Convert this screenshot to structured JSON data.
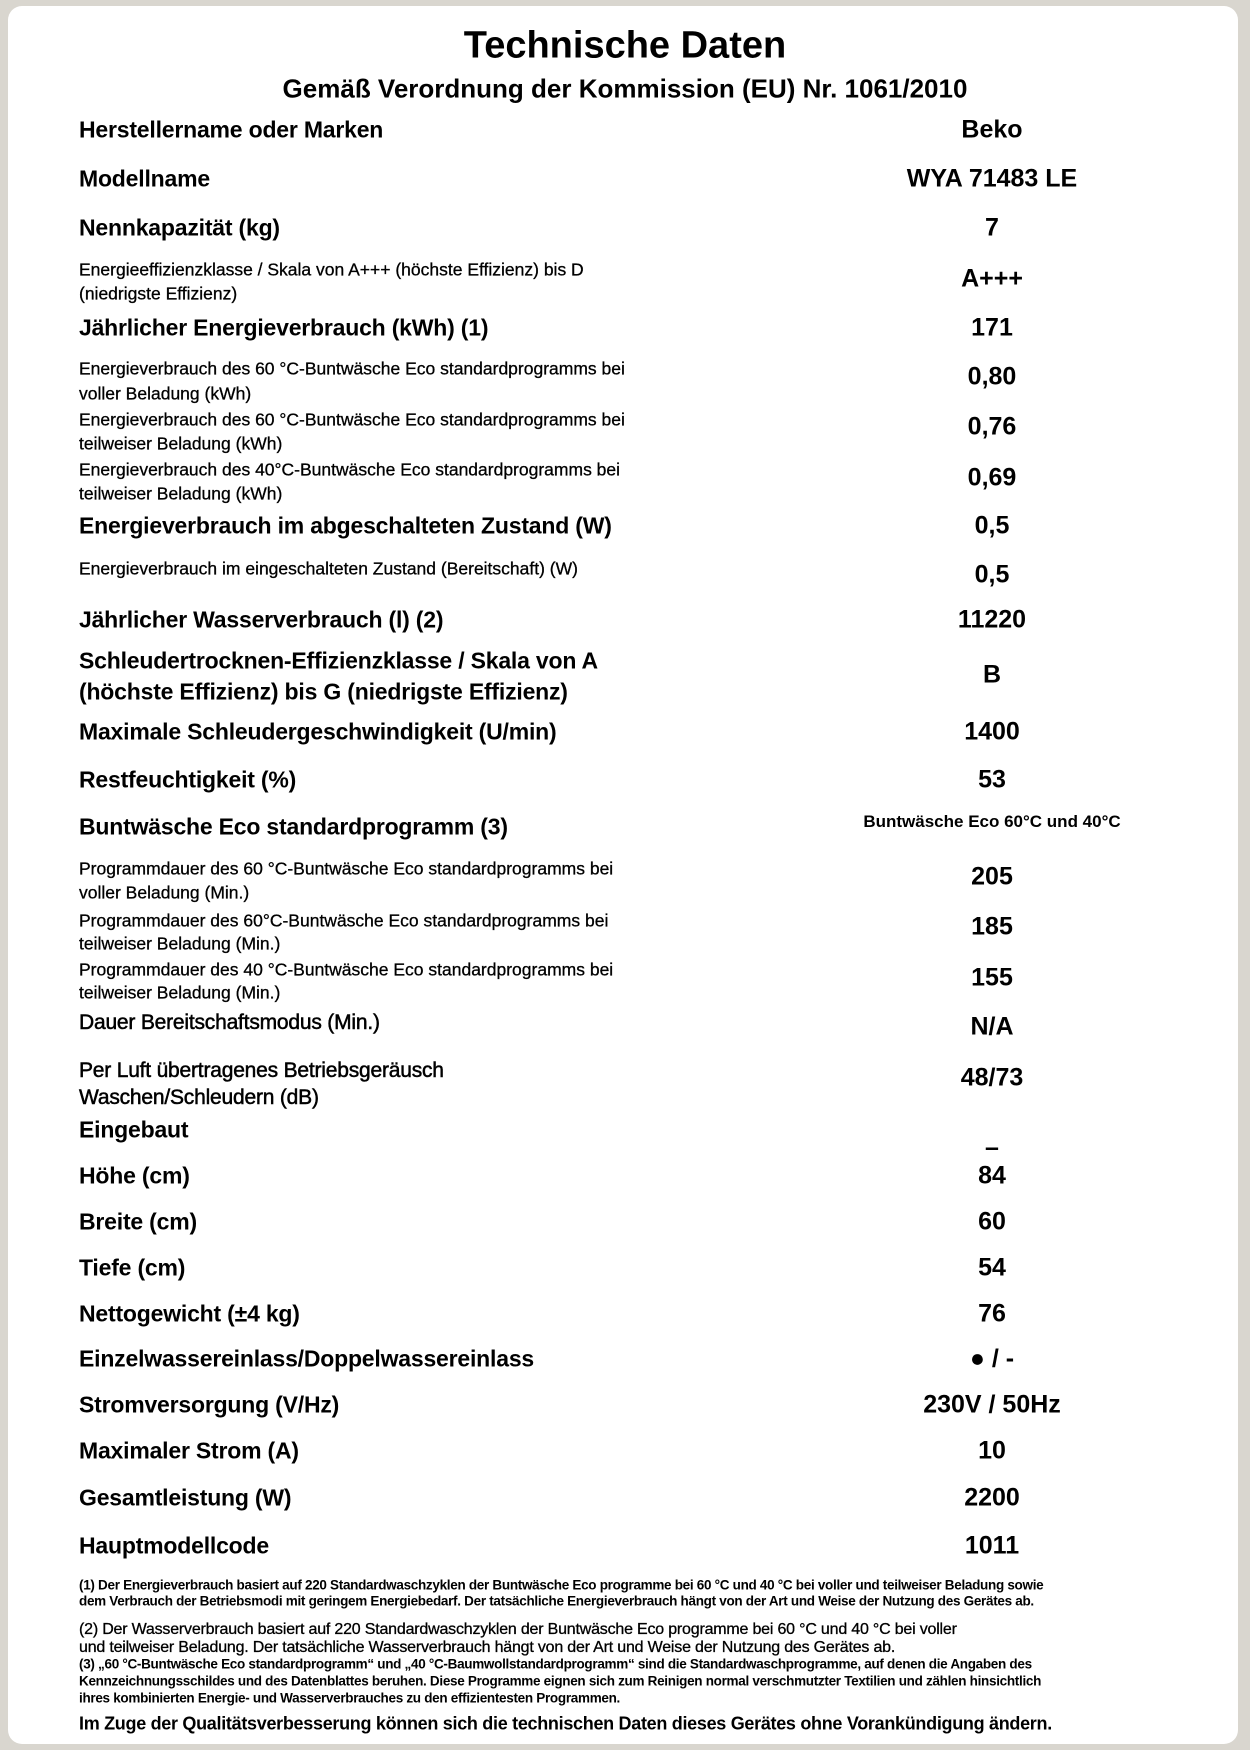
{
  "title": "Technische Daten",
  "subtitle": "Gemäß Verordnung der Kommission (EU) Nr. 1061/2010",
  "rows": [
    {
      "label": [
        "Herstellername oder Marken"
      ],
      "value": "Beko"
    },
    {
      "label": [
        "Modellname"
      ],
      "value": "WYA 71483 LE"
    },
    {
      "label": [
        "Nennkapazität (kg)"
      ],
      "value": "7"
    },
    {
      "label": [
        "Energieeffizienzklasse / Skala von A+++ (höchste Effizienz) bis D",
        "(niedrigste Effizienz)"
      ],
      "value": "A+++"
    },
    {
      "label": [
        "Jährlicher Energieverbrauch (kWh) (1)"
      ],
      "value": "171"
    },
    {
      "label": [
        "Energieverbrauch des 60 °C-Buntwäsche Eco standardprogramms bei",
        "voller Beladung (kWh)"
      ],
      "value": "0,80"
    },
    {
      "label": [
        "Energieverbrauch des 60 °C-Buntwäsche Eco standardprogramms bei",
        "teilweiser Beladung (kWh)"
      ],
      "value": "0,76"
    },
    {
      "label": [
        "Energieverbrauch des 40°C-Buntwäsche Eco standardprogramms bei",
        "teilweiser Beladung (kWh)"
      ],
      "value": "0,69"
    },
    {
      "label": [
        "Energieverbrauch im abgeschalteten Zustand (W)"
      ],
      "value": "0,5"
    },
    {
      "label": [
        "Energieverbrauch im eingeschalteten Zustand (Bereitschaft) (W)"
      ],
      "value": "0,5"
    },
    {
      "label": [
        "Jährlicher Wasserverbrauch (l) (2)"
      ],
      "value": "11220"
    },
    {
      "label": [
        "Schleudertrocknen-Effizienzklasse / Skala von A",
        "(höchste Effizienz) bis G (niedrigste Effizienz)"
      ],
      "value": "B"
    },
    {
      "label": [
        "Maximale Schleudergeschwindigkeit (U/min)"
      ],
      "value": "1400"
    },
    {
      "label": [
        "Restfeuchtigkeit (%)"
      ],
      "value": "53"
    },
    {
      "label": [
        "Buntwäsche Eco standardprogramm (3)"
      ],
      "value": "Buntwäsche Eco 60°C und 40°C"
    },
    {
      "label": [
        "Programmdauer des 60 °C-Buntwäsche Eco standardprogramms bei",
        "voller Beladung (Min.)"
      ],
      "value": "205"
    },
    {
      "label": [
        "Programmdauer des 60°C-Buntwäsche Eco standardprogramms bei",
        "teilweiser Beladung (Min.)"
      ],
      "value": "185"
    },
    {
      "label": [
        "Programmdauer des 40 °C-Buntwäsche Eco standardprogramms bei",
        "teilweiser Beladung (Min.)"
      ],
      "value": "155"
    },
    {
      "label": [
        "Dauer Bereitschaftsmodus (Min.)"
      ],
      "value": "N/A"
    },
    {
      "label": [
        "Per Luft übertragenes Betriebsgeräusch",
        "Waschen/Schleudern (dB)"
      ],
      "value": "48/73"
    },
    {
      "label": [
        "Eingebaut"
      ],
      "value": "–"
    },
    {
      "label": [
        "Höhe (cm)"
      ],
      "value": "84"
    },
    {
      "label": [
        "Breite (cm)"
      ],
      "value": "60"
    },
    {
      "label": [
        "Tiefe (cm)"
      ],
      "value": "54"
    },
    {
      "label": [
        "Nettogewicht (±4 kg)"
      ],
      "value": "76"
    },
    {
      "label": [
        "Einzelwassereinlass/Doppelwassereinlass"
      ],
      "value": "● / -"
    },
    {
      "label": [
        "Stromversorgung (V/Hz)"
      ],
      "value": "230V / 50Hz"
    },
    {
      "label": [
        "Maximaler Strom (A)"
      ],
      "value": "10"
    },
    {
      "label": [
        "Gesamtleistung (W)"
      ],
      "value": "2200"
    },
    {
      "label": [
        "Hauptmodellcode"
      ],
      "value": "1011"
    }
  ],
  "footnotes": {
    "f1": [
      "(1) Der Energieverbrauch basiert auf 220 Standardwaschzyklen der Buntwäsche Eco programme bei 60 °C und 40 °C bei voller und teilweiser Beladung sowie",
      "dem Verbrauch der Betriebsmodi mit geringem Energiebedarf. Der tatsächliche Energieverbrauch hängt von der Art und Weise der Nutzung des Gerätes ab."
    ],
    "f2": [
      "(2) Der Wasserverbrauch basiert auf 220 Standardwaschzyklen der Buntwäsche Eco programme bei 60 °C und 40 °C bei voller",
      "und teilweiser Beladung. Der tatsächliche Wasserverbrauch hängt von der Art und Weise der Nutzung des Gerätes ab."
    ],
    "f3": [
      "(3) „60 °C-Buntwäsche Eco standardprogramm“ und „40 °C-Baumwollstandardprogramm“ sind die Standardwaschprogramme, auf denen die Angaben des",
      "Kennzeichnungsschildes und des Datenblattes beruhen. Diese Programme eignen sich zum Reinigen normal verschmutzter Textilien und zählen hinsichtlich",
      "ihres kombinierten Energie- und Wasserverbrauches zu den effizientesten Programmen."
    ],
    "notice": "Im Zuge der Qualitätsverbesserung können sich die technischen Daten dieses Gerätes ohne Vorankündigung ändern."
  }
}
